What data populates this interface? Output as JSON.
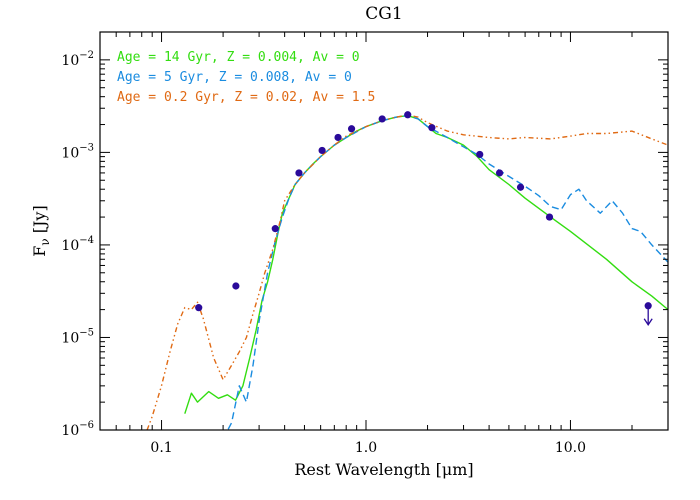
{
  "chart_data": {
    "type": "line",
    "title": "CG1",
    "xlabel": "Rest Wavelength [μm]",
    "ylabel": "Fν [Jy]",
    "ylabel_main": "F",
    "ylabel_sub": "ν",
    "ylabel_units": " [Jy]",
    "xscale": "log",
    "yscale": "log",
    "xlim": [
      0.05,
      30
    ],
    "ylim": [
      1e-06,
      0.02
    ],
    "grid": false,
    "legend_position": "top-left",
    "x_ticks": [
      {
        "value": 0.1,
        "label": "0.1"
      },
      {
        "value": 1.0,
        "label": "1.0"
      },
      {
        "value": 10.0,
        "label": "10.0"
      }
    ],
    "y_ticks": [
      {
        "value": 1e-06,
        "base": "10",
        "exp": "−6"
      },
      {
        "value": 1e-05,
        "base": "10",
        "exp": "−5"
      },
      {
        "value": 0.0001,
        "base": "10",
        "exp": "−4"
      },
      {
        "value": 0.001,
        "base": "10",
        "exp": "−3"
      },
      {
        "value": 0.01,
        "base": "10",
        "exp": "−2"
      }
    ],
    "series": [
      {
        "name": "Age = 14 Gyr, Z = 0.004, Av = 0",
        "color": "#33dd11",
        "style": "solid",
        "x": [
          0.13,
          0.14,
          0.15,
          0.17,
          0.19,
          0.21,
          0.23,
          0.25,
          0.27,
          0.29,
          0.31,
          0.33,
          0.35,
          0.37,
          0.39,
          0.42,
          0.45,
          0.5,
          0.55,
          0.6,
          0.7,
          0.8,
          0.9,
          1.0,
          1.2,
          1.4,
          1.6,
          1.8,
          2.0,
          2.2,
          2.5,
          3.0,
          3.5,
          4.0,
          5.0,
          6.0,
          8.0,
          10.0,
          15.0,
          20.0,
          25.0,
          30.0
        ],
        "y": [
          1.5e-06,
          2.5e-06,
          2e-06,
          2.6e-06,
          2.2e-06,
          2.4e-06,
          2.1e-06,
          3e-06,
          6e-06,
          1.2e-05,
          2.5e-05,
          4e-05,
          7e-05,
          0.00013,
          0.00022,
          0.00032,
          0.00045,
          0.0006,
          0.00075,
          0.0009,
          0.0012,
          0.00145,
          0.0017,
          0.0019,
          0.0022,
          0.0024,
          0.0025,
          0.0023,
          0.0019,
          0.0016,
          0.00145,
          0.0012,
          0.0009,
          0.00065,
          0.00045,
          0.00032,
          0.0002,
          0.00014,
          7e-05,
          4e-05,
          2.8e-05,
          2e-05
        ]
      },
      {
        "name": "Age = 5 Gyr, Z = 0.008, Av = 0",
        "color": "#1a8ce0",
        "style": "dashed",
        "x": [
          0.2,
          0.22,
          0.24,
          0.26,
          0.28,
          0.3,
          0.33,
          0.36,
          0.39,
          0.42,
          0.45,
          0.5,
          0.6,
          0.7,
          0.8,
          1.0,
          1.2,
          1.4,
          1.6,
          1.8,
          2.0,
          2.5,
          3.0,
          3.5,
          4.0,
          5.0,
          6.0,
          7.0,
          8.0,
          9.0,
          10.0,
          11.0,
          12.0,
          14.0,
          16.0,
          18.0,
          20.0,
          22.0,
          25.0,
          30.0
        ],
        "y": [
          8e-07,
          1.2e-06,
          3e-06,
          2e-06,
          5e-06,
          1.5e-05,
          5e-05,
          0.00011,
          0.0002,
          0.00032,
          0.00045,
          0.0006,
          0.0009,
          0.0012,
          0.00145,
          0.0019,
          0.0022,
          0.0024,
          0.0025,
          0.0023,
          0.0019,
          0.00145,
          0.00115,
          0.00095,
          0.00075,
          0.00055,
          0.00043,
          0.00034,
          0.00026,
          0.00024,
          0.00035,
          0.0004,
          0.0003,
          0.00022,
          0.0003,
          0.00022,
          0.00015,
          0.00014,
          0.0001,
          6.5e-05
        ]
      },
      {
        "name": "Age = 0.2 Gyr, Z = 0.02, Av = 1.5",
        "color": "#e06a14",
        "style": "dashdot",
        "x": [
          0.085,
          0.09,
          0.1,
          0.11,
          0.12,
          0.13,
          0.14,
          0.15,
          0.16,
          0.18,
          0.2,
          0.22,
          0.24,
          0.26,
          0.28,
          0.3,
          0.32,
          0.35,
          0.38,
          0.4,
          0.45,
          0.5,
          0.6,
          0.7,
          0.8,
          1.0,
          1.2,
          1.4,
          1.6,
          1.8,
          2.0,
          2.5,
          3.0,
          4.0,
          5.0,
          6.0,
          8.0,
          10.0,
          12.0,
          15.0,
          20.0,
          25.0,
          30.0
        ],
        "y": [
          1e-06,
          1.4e-06,
          3e-06,
          7e-06,
          1.4e-05,
          2.1e-05,
          2e-05,
          2.4e-05,
          1.6e-05,
          6e-06,
          3.5e-06,
          5e-06,
          7e-06,
          1e-05,
          1.8e-05,
          3e-05,
          5e-05,
          9e-05,
          0.00018,
          0.0003,
          0.00045,
          0.0006,
          0.0009,
          0.0012,
          0.0015,
          0.0019,
          0.0022,
          0.0024,
          0.00255,
          0.0024,
          0.0021,
          0.0017,
          0.00155,
          0.00145,
          0.0014,
          0.00145,
          0.0014,
          0.0015,
          0.0016,
          0.0016,
          0.0017,
          0.0014,
          0.0012
        ]
      }
    ],
    "observations": {
      "color": "#2a0a9a",
      "points": [
        {
          "x": 0.152,
          "y": 2.1e-05
        },
        {
          "x": 0.231,
          "y": 3.6e-05
        },
        {
          "x": 0.36,
          "y": 0.00015
        },
        {
          "x": 0.47,
          "y": 0.0006
        },
        {
          "x": 0.61,
          "y": 0.00105
        },
        {
          "x": 0.73,
          "y": 0.00145
        },
        {
          "x": 0.85,
          "y": 0.0018
        },
        {
          "x": 1.2,
          "y": 0.0023
        },
        {
          "x": 1.6,
          "y": 0.00255
        },
        {
          "x": 2.1,
          "y": 0.00185
        },
        {
          "x": 3.6,
          "y": 0.00095
        },
        {
          "x": 4.5,
          "y": 0.0006
        },
        {
          "x": 5.7,
          "y": 0.00042
        },
        {
          "x": 7.9,
          "y": 0.0002
        }
      ],
      "upper_limits": [
        {
          "x": 24.0,
          "y": 2.2e-05
        }
      ]
    }
  }
}
